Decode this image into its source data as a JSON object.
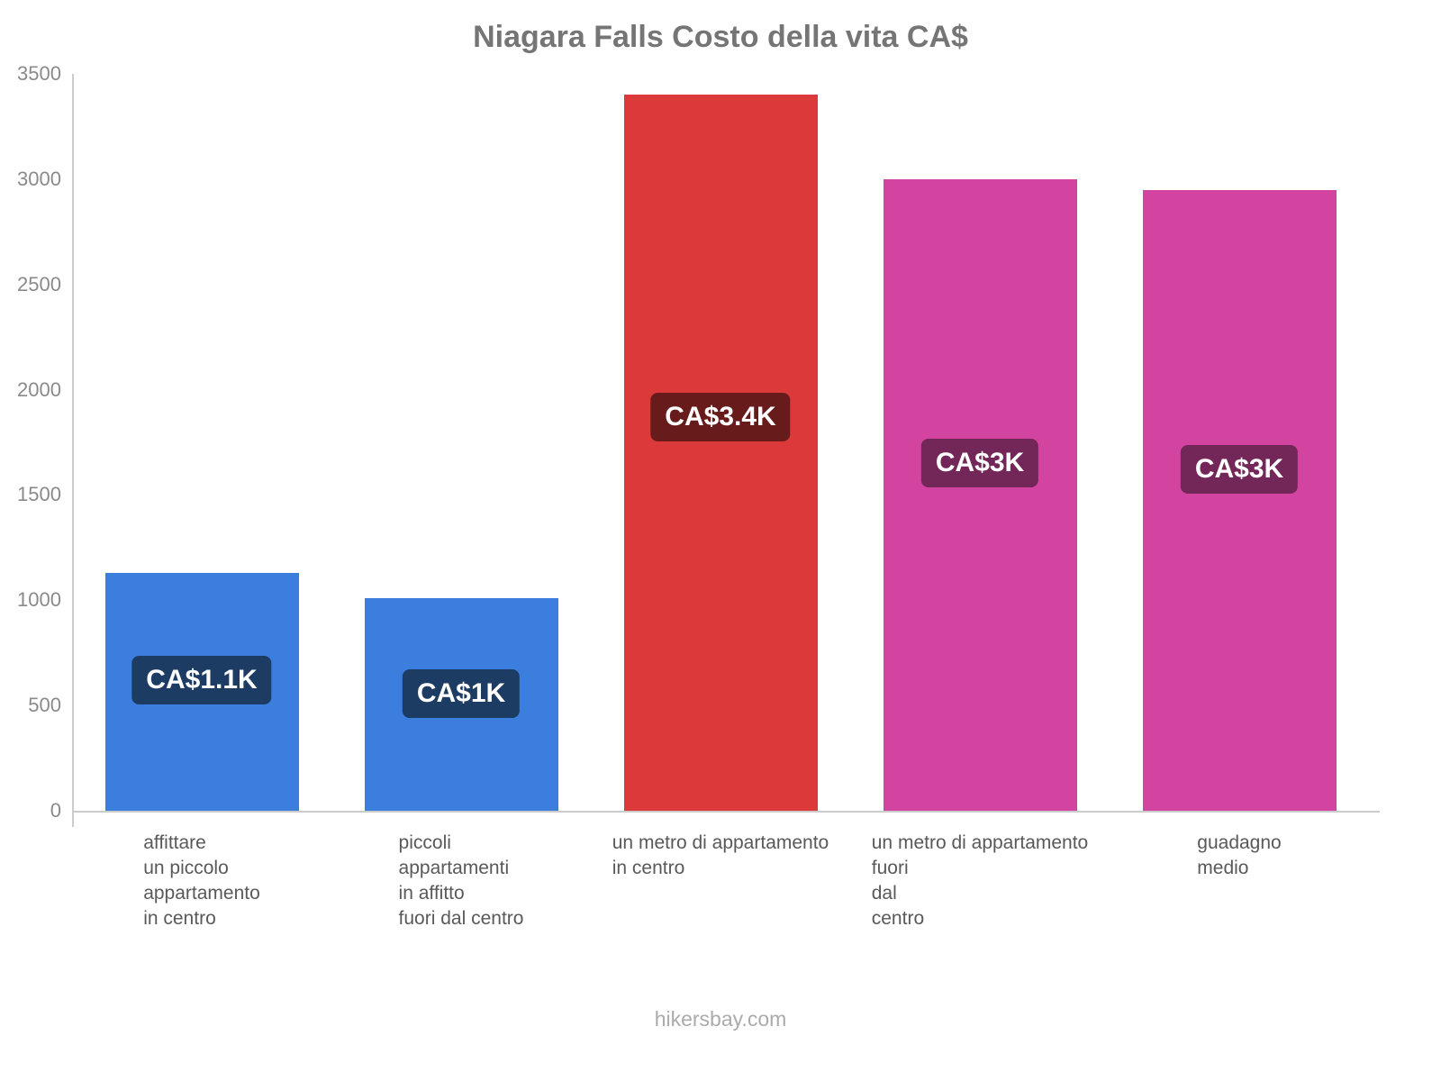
{
  "title": "Niagara Falls Costo della vita CA$",
  "footer": "hikersbay.com",
  "chart_data": {
    "type": "bar",
    "title": "Niagara Falls Costo della vita CA$",
    "categories": [
      "affittare\nun piccolo\nappartamento\nin centro",
      "piccoli\nappartamenti\nin affitto\nfuori dal centro",
      "un metro di appartamento\nin centro",
      "un metro di appartamento\nfuori\ndal\ncentro",
      "guadagno\nmedio"
    ],
    "values": [
      1130,
      1010,
      3400,
      3000,
      2950
    ],
    "value_labels": [
      "CA$1.1K",
      "CA$1K",
      "CA$3.4K",
      "CA$3K",
      "CA$3K"
    ],
    "bar_colors": [
      "#3b7edd",
      "#3b7edd",
      "#dc3a3a",
      "#d244a0",
      "#d244a0"
    ],
    "badge_colors": [
      "#1d3c63",
      "#1d3c63",
      "#671b1b",
      "#732658",
      "#732658"
    ],
    "xlabel": "",
    "ylabel": "",
    "ylim": [
      0,
      3500
    ],
    "yticks": [
      0,
      500,
      1000,
      1500,
      2000,
      2500,
      3000,
      3500
    ],
    "grid": false,
    "legend": false,
    "currency": "CA$",
    "watermark": "hikersbay.com"
  }
}
